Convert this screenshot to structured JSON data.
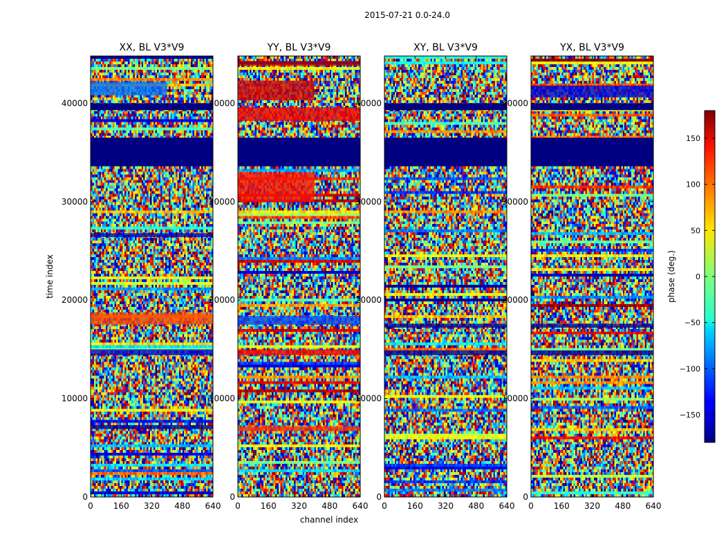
{
  "chart_data": {
    "type": "heatmap",
    "suptitle": "2015-07-21 0.0-24.0",
    "xlabel": "channel index",
    "ylabel": "time index",
    "xlim": [
      0,
      640
    ],
    "ylim": [
      0,
      44800
    ],
    "xticks": [
      0,
      160,
      320,
      480,
      640
    ],
    "yticks": [
      0,
      10000,
      20000,
      30000,
      40000
    ],
    "panels": [
      {
        "title": "XX, BL V3*V9",
        "features": [
          {
            "t0": 33600,
            "t1": 36500,
            "c0": 0,
            "c1": 640,
            "phase": -180,
            "kind": "solid"
          },
          {
            "t0": 39300,
            "t1": 40000,
            "c0": 0,
            "c1": 640,
            "phase": -180,
            "kind": "solid"
          },
          {
            "t0": 40800,
            "t1": 42200,
            "c0": 0,
            "c1": 400,
            "phase": -95,
            "kind": "band"
          },
          {
            "t0": 17500,
            "t1": 18700,
            "c0": 0,
            "c1": 640,
            "phase": 110,
            "kind": "band"
          },
          {
            "t0": 14400,
            "t1": 15000,
            "c0": 0,
            "c1": 640,
            "phase": -150,
            "kind": "band"
          },
          {
            "t0": 26400,
            "t1": 26800,
            "c0": 0,
            "c1": 640,
            "phase": -160,
            "kind": "band"
          },
          {
            "t0": 6900,
            "t1": 7300,
            "c0": 0,
            "c1": 640,
            "phase": -170,
            "kind": "band"
          }
        ]
      },
      {
        "title": "YY, BL V3*V9",
        "features": [
          {
            "t0": 33600,
            "t1": 36500,
            "c0": 0,
            "c1": 640,
            "phase": -180,
            "kind": "solid"
          },
          {
            "t0": 40300,
            "t1": 42300,
            "c0": 0,
            "c1": 400,
            "phase": 150,
            "kind": "band"
          },
          {
            "t0": 38200,
            "t1": 39600,
            "c0": 0,
            "c1": 640,
            "phase": 140,
            "kind": "band"
          },
          {
            "t0": 30000,
            "t1": 33000,
            "c0": 0,
            "c1": 400,
            "phase": 130,
            "kind": "band"
          },
          {
            "t0": 43800,
            "t1": 44300,
            "c0": 0,
            "c1": 640,
            "phase": 160,
            "kind": "band"
          },
          {
            "t0": 17500,
            "t1": 18400,
            "c0": 0,
            "c1": 640,
            "phase": -110,
            "kind": "band"
          },
          {
            "t0": 14400,
            "t1": 15000,
            "c0": 0,
            "c1": 640,
            "phase": 140,
            "kind": "band"
          },
          {
            "t0": 6700,
            "t1": 7200,
            "c0": 0,
            "c1": 640,
            "phase": 120,
            "kind": "band"
          }
        ]
      },
      {
        "title": "XY, BL V3*V9",
        "features": [
          {
            "t0": 33600,
            "t1": 36500,
            "c0": 0,
            "c1": 640,
            "phase": -180,
            "kind": "solid"
          },
          {
            "t0": 39300,
            "t1": 40000,
            "c0": 0,
            "c1": 640,
            "phase": -180,
            "kind": "solid"
          },
          {
            "t0": 17200,
            "t1": 17600,
            "c0": 0,
            "c1": 640,
            "phase": -170,
            "kind": "band"
          },
          {
            "t0": 14400,
            "t1": 14900,
            "c0": 0,
            "c1": 640,
            "phase": -170,
            "kind": "band"
          }
        ]
      },
      {
        "title": "YX, BL V3*V9",
        "features": [
          {
            "t0": 33600,
            "t1": 36500,
            "c0": 0,
            "c1": 640,
            "phase": -180,
            "kind": "solid"
          },
          {
            "t0": 39300,
            "t1": 40000,
            "c0": 0,
            "c1": 640,
            "phase": -180,
            "kind": "solid"
          },
          {
            "t0": 17200,
            "t1": 17600,
            "c0": 0,
            "c1": 640,
            "phase": -170,
            "kind": "band"
          },
          {
            "t0": 14400,
            "t1": 14900,
            "c0": 0,
            "c1": 640,
            "phase": -170,
            "kind": "band"
          },
          {
            "t0": 40600,
            "t1": 41800,
            "c0": 0,
            "c1": 640,
            "phase": -150,
            "kind": "band"
          }
        ]
      }
    ],
    "colorbar": {
      "label": "phase (deg.)",
      "range": [
        -180,
        180
      ],
      "ticks": [
        -150,
        -100,
        -50,
        0,
        50,
        100,
        150
      ],
      "tick_labels": [
        "−150",
        "−100",
        "−50",
        "0",
        "50",
        "100",
        "150"
      ],
      "colormap": "jet"
    }
  }
}
